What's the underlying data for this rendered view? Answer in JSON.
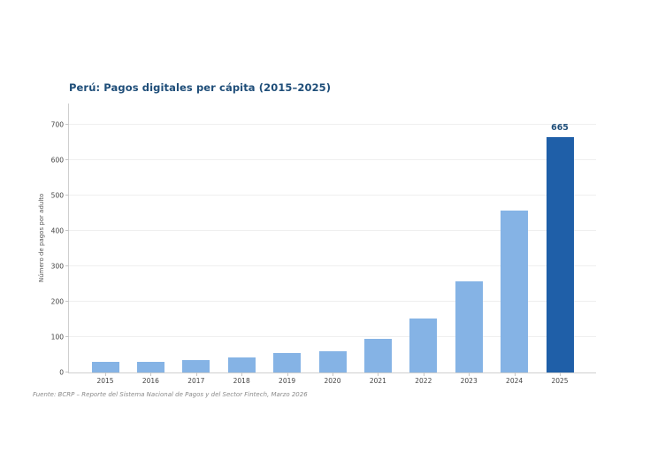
{
  "footer": {
    "text": "Fuente: BCRP – Reporte del Sistema Nacional de Pagos y del Sector Fintech, Marzo 2026"
  },
  "chart_data": {
    "type": "bar",
    "title": "Perú: Pagos digitales per cápita (2015–2025)",
    "categories": [
      "2015",
      "2016",
      "2017",
      "2018",
      "2019",
      "2020",
      "2021",
      "2022",
      "2023",
      "2024",
      "2025"
    ],
    "values": [
      30,
      30,
      36,
      43,
      54,
      60,
      95,
      153,
      258,
      458,
      665
    ],
    "xlabel": "",
    "ylabel": "Número de pagos por adulto",
    "ylim": [
      0,
      760
    ],
    "yticks": [
      0,
      100,
      200,
      300,
      400,
      500,
      600,
      700
    ],
    "grid": true,
    "legend": false,
    "bar_color": "#85b3e5",
    "highlight_index": 10,
    "highlight_color": "#1f5fa8",
    "title_color": "#1f4e79",
    "annotation_color": "#1f4e79",
    "annotations": [
      {
        "category": "2025",
        "text": "665"
      }
    ]
  }
}
